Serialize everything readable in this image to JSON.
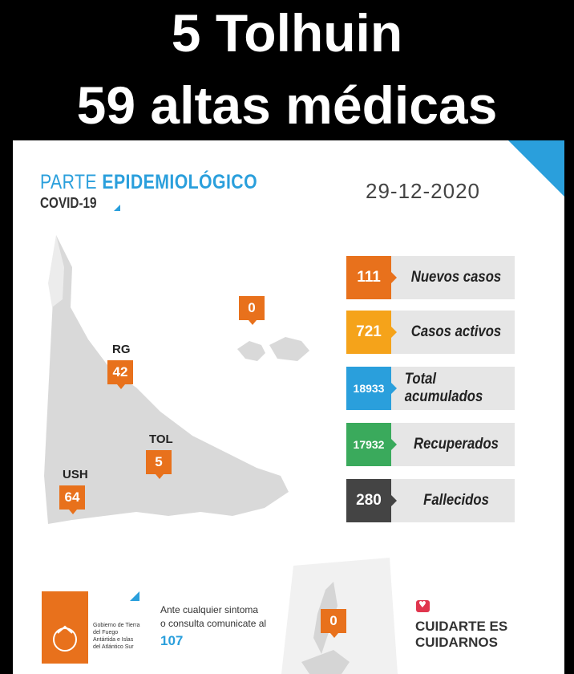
{
  "headline": {
    "line1": "5 Tolhuin",
    "line2": "59 altas médicas"
  },
  "report": {
    "title_light": "PARTE ",
    "title_bold": "EPIDEMIOLÓGICO",
    "subtitle": "COVID-19",
    "date": "29-12-2020"
  },
  "map": {
    "markers": [
      {
        "label": "RG",
        "value": "42"
      },
      {
        "label": "TOL",
        "value": "5"
      },
      {
        "label": "USH",
        "value": "64"
      },
      {
        "label": "",
        "value": "0"
      }
    ],
    "antarctica_value": "0"
  },
  "stats": [
    {
      "value": "111",
      "label": "Nuevos casos",
      "color": "#e8711c"
    },
    {
      "value": "721",
      "label": "Casos activos",
      "color": "#f5a31a"
    },
    {
      "value": "18933",
      "label": "Total acumulados",
      "color": "#2a9fdc"
    },
    {
      "value": "17932",
      "label": "Recuperados",
      "color": "#3aaa5c"
    },
    {
      "value": "280",
      "label": "Fallecidos",
      "color": "#444444"
    }
  ],
  "footer": {
    "gov_text": "Gobierno de Tierra del Fuego Antártida e Islas del Atlántico Sur",
    "contact_line1": "Ante cualquier sintoma",
    "contact_line2": "o consulta comunicate al",
    "phone": "107",
    "slogan_line1": "CUIDARTE ES",
    "slogan_line2": "CUIDARNOS"
  }
}
